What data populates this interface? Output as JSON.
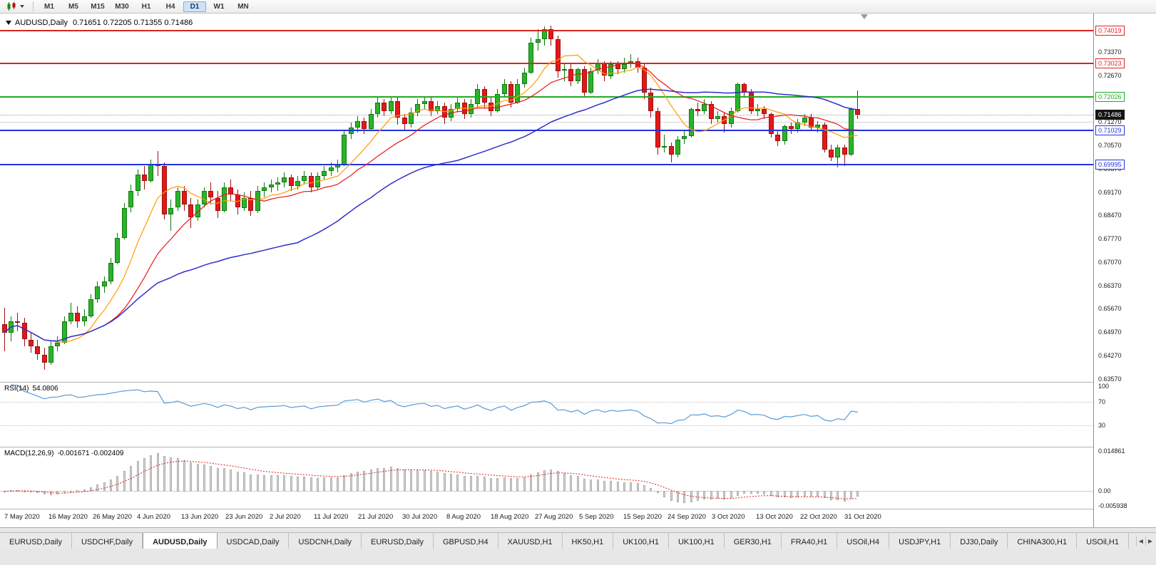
{
  "toolbar": {
    "timeframes": [
      "M1",
      "M5",
      "M15",
      "M30",
      "H1",
      "H4",
      "D1",
      "W1",
      "MN"
    ],
    "active_timeframe": "D1"
  },
  "chart": {
    "symbol_title": "AUDUSD,Daily",
    "ohlc_line": "0.71651 0.72205 0.71355 0.71486",
    "scale": {
      "price_max": 0.7452,
      "price_min": 0.635
    },
    "current": {
      "price": 0.71486,
      "label": "0.71486"
    },
    "grid_line_price": 0.7127,
    "y_axis_labels": [
      "0.74070",
      "0.73370",
      "0.72670",
      "0.71970",
      "0.71270",
      "0.70570",
      "0.69870",
      "0.69170",
      "0.68470",
      "0.67770",
      "0.67070",
      "0.66370",
      "0.65670",
      "0.64970",
      "0.64270",
      "0.63570"
    ],
    "levels": [
      {
        "price": 0.74019,
        "label": "0.74019",
        "color": "#dd2222"
      },
      {
        "price": 0.73023,
        "label": "0.73023",
        "color": "#dd2222"
      },
      {
        "price": 0.72026,
        "label": "0.72026",
        "color": "#22aa22"
      },
      {
        "price": 0.71029,
        "label": "0.71029",
        "color": "#2233dd"
      },
      {
        "price": 0.69995,
        "label": "0.69995",
        "color": "#2233dd"
      }
    ],
    "colors": {
      "up": "#2bb32b",
      "up_border": "#0e7a0e",
      "down": "#e51717",
      "down_border": "#9c0f0f"
    }
  },
  "chart_data": {
    "type": "candlestick",
    "title": "AUDUSD,Daily",
    "x_axis_labels": [
      "7 May 2020",
      "16 May 2020",
      "26 May 2020",
      "4 Jun 2020",
      "13 Jun 2020",
      "23 Jun 2020",
      "2 Jul 2020",
      "11 Jul 2020",
      "21 Jul 2020",
      "30 Jul 2020",
      "8 Aug 2020",
      "18 Aug 2020",
      "27 Aug 2020",
      "5 Sep 2020",
      "15 Sep 2020",
      "24 Sep 2020",
      "3 Oct 2020",
      "13 Oct 2020",
      "22 Oct 2020",
      "31 Oct 2020"
    ],
    "ohlc_last": {
      "open": 0.71651,
      "high": 0.72205,
      "low": 0.71355,
      "close": 0.71486
    },
    "candles": [
      [
        0.652,
        0.657,
        0.644,
        0.6495
      ],
      [
        0.6495,
        0.6545,
        0.647,
        0.653
      ],
      [
        0.653,
        0.6555,
        0.65,
        0.6525
      ],
      [
        0.6525,
        0.654,
        0.6455,
        0.6475
      ],
      [
        0.6475,
        0.6495,
        0.6435,
        0.6455
      ],
      [
        0.6455,
        0.6475,
        0.6415,
        0.643
      ],
      [
        0.643,
        0.645,
        0.6385,
        0.6405
      ],
      [
        0.6405,
        0.647,
        0.64,
        0.6455
      ],
      [
        0.6455,
        0.6485,
        0.644,
        0.6465
      ],
      [
        0.6465,
        0.6545,
        0.646,
        0.653
      ],
      [
        0.653,
        0.6585,
        0.652,
        0.6555
      ],
      [
        0.6555,
        0.6575,
        0.651,
        0.653
      ],
      [
        0.653,
        0.6565,
        0.6515,
        0.6545
      ],
      [
        0.6545,
        0.661,
        0.654,
        0.6595
      ],
      [
        0.6595,
        0.665,
        0.6585,
        0.6635
      ],
      [
        0.6635,
        0.6665,
        0.6615,
        0.665
      ],
      [
        0.665,
        0.672,
        0.664,
        0.6705
      ],
      [
        0.6705,
        0.6795,
        0.67,
        0.678
      ],
      [
        0.678,
        0.6885,
        0.6775,
        0.687
      ],
      [
        0.687,
        0.694,
        0.6855,
        0.692
      ],
      [
        0.692,
        0.6985,
        0.6905,
        0.697
      ],
      [
        0.697,
        0.6995,
        0.6925,
        0.695
      ],
      [
        0.695,
        0.7015,
        0.6945,
        0.7
      ],
      [
        0.7,
        0.704,
        0.6965,
        0.6995
      ],
      [
        0.6995,
        0.7005,
        0.6835,
        0.685
      ],
      [
        0.685,
        0.6895,
        0.68,
        0.687
      ],
      [
        0.687,
        0.693,
        0.686,
        0.692
      ],
      [
        0.692,
        0.6935,
        0.686,
        0.688
      ],
      [
        0.688,
        0.69,
        0.681,
        0.684
      ],
      [
        0.684,
        0.6895,
        0.683,
        0.688
      ],
      [
        0.688,
        0.693,
        0.687,
        0.692
      ],
      [
        0.692,
        0.6945,
        0.688,
        0.69
      ],
      [
        0.69,
        0.692,
        0.684,
        0.686
      ],
      [
        0.686,
        0.6945,
        0.6855,
        0.693
      ],
      [
        0.693,
        0.6955,
        0.689,
        0.691
      ],
      [
        0.691,
        0.6925,
        0.685,
        0.687
      ],
      [
        0.687,
        0.6915,
        0.686,
        0.69
      ],
      [
        0.69,
        0.692,
        0.6845,
        0.686
      ],
      [
        0.686,
        0.6935,
        0.6855,
        0.692
      ],
      [
        0.692,
        0.6945,
        0.69,
        0.693
      ],
      [
        0.693,
        0.6955,
        0.6915,
        0.694
      ],
      [
        0.694,
        0.696,
        0.692,
        0.6945
      ],
      [
        0.6945,
        0.6975,
        0.693,
        0.696
      ],
      [
        0.696,
        0.697,
        0.692,
        0.6935
      ],
      [
        0.6935,
        0.6965,
        0.6925,
        0.695
      ],
      [
        0.695,
        0.698,
        0.694,
        0.6965
      ],
      [
        0.6965,
        0.6975,
        0.6915,
        0.693
      ],
      [
        0.693,
        0.6975,
        0.6925,
        0.6965
      ],
      [
        0.6965,
        0.6995,
        0.6955,
        0.698
      ],
      [
        0.698,
        0.7005,
        0.6965,
        0.699
      ],
      [
        0.699,
        0.7015,
        0.6975,
        0.7
      ],
      [
        0.7,
        0.7105,
        0.6995,
        0.709
      ],
      [
        0.709,
        0.7125,
        0.7075,
        0.711
      ],
      [
        0.711,
        0.7145,
        0.7095,
        0.713
      ],
      [
        0.713,
        0.714,
        0.709,
        0.7105
      ],
      [
        0.7105,
        0.7165,
        0.71,
        0.715
      ],
      [
        0.715,
        0.72,
        0.714,
        0.7185
      ],
      [
        0.7185,
        0.7195,
        0.7145,
        0.716
      ],
      [
        0.716,
        0.7205,
        0.715,
        0.719
      ],
      [
        0.719,
        0.72,
        0.712,
        0.714
      ],
      [
        0.714,
        0.715,
        0.71,
        0.712
      ],
      [
        0.712,
        0.717,
        0.711,
        0.7155
      ],
      [
        0.7155,
        0.7195,
        0.7145,
        0.718
      ],
      [
        0.718,
        0.7205,
        0.7165,
        0.719
      ],
      [
        0.719,
        0.72,
        0.7145,
        0.716
      ],
      [
        0.716,
        0.719,
        0.715,
        0.7175
      ],
      [
        0.7175,
        0.7185,
        0.712,
        0.714
      ],
      [
        0.714,
        0.718,
        0.713,
        0.7165
      ],
      [
        0.7165,
        0.72,
        0.7155,
        0.7185
      ],
      [
        0.7185,
        0.7195,
        0.7135,
        0.715
      ],
      [
        0.715,
        0.7195,
        0.714,
        0.718
      ],
      [
        0.718,
        0.724,
        0.717,
        0.7225
      ],
      [
        0.7225,
        0.7235,
        0.717,
        0.7185
      ],
      [
        0.7185,
        0.72,
        0.7145,
        0.716
      ],
      [
        0.716,
        0.7225,
        0.7155,
        0.721
      ],
      [
        0.721,
        0.7255,
        0.72,
        0.724
      ],
      [
        0.724,
        0.725,
        0.717,
        0.7185
      ],
      [
        0.7185,
        0.7255,
        0.718,
        0.724
      ],
      [
        0.724,
        0.729,
        0.723,
        0.7275
      ],
      [
        0.7275,
        0.738,
        0.727,
        0.7365
      ],
      [
        0.7365,
        0.7405,
        0.734,
        0.7375
      ],
      [
        0.7375,
        0.7414,
        0.7355,
        0.7405
      ],
      [
        0.7405,
        0.7415,
        0.7355,
        0.7375
      ],
      [
        0.7375,
        0.7385,
        0.726,
        0.728
      ],
      [
        0.728,
        0.73,
        0.725,
        0.7285
      ],
      [
        0.7285,
        0.73,
        0.7235,
        0.725
      ],
      [
        0.725,
        0.729,
        0.724,
        0.7285
      ],
      [
        0.7285,
        0.7295,
        0.7205,
        0.7215
      ],
      [
        0.7215,
        0.729,
        0.721,
        0.728
      ],
      [
        0.728,
        0.7315,
        0.727,
        0.7305
      ],
      [
        0.7305,
        0.731,
        0.725,
        0.7265
      ],
      [
        0.7265,
        0.731,
        0.7255,
        0.73
      ],
      [
        0.73,
        0.731,
        0.727,
        0.7285
      ],
      [
        0.7285,
        0.732,
        0.7275,
        0.73
      ],
      [
        0.73,
        0.733,
        0.729,
        0.731
      ],
      [
        0.731,
        0.732,
        0.7275,
        0.729
      ],
      [
        0.729,
        0.73,
        0.7195,
        0.7215
      ],
      [
        0.7215,
        0.723,
        0.714,
        0.716
      ],
      [
        0.716,
        0.717,
        0.703,
        0.705
      ],
      [
        0.705,
        0.709,
        0.7035,
        0.7055
      ],
      [
        0.7055,
        0.7065,
        0.7005,
        0.703
      ],
      [
        0.703,
        0.7085,
        0.702,
        0.7075
      ],
      [
        0.7075,
        0.71,
        0.706,
        0.7085
      ],
      [
        0.7085,
        0.717,
        0.708,
        0.7165
      ],
      [
        0.7165,
        0.7185,
        0.7145,
        0.716
      ],
      [
        0.716,
        0.7195,
        0.715,
        0.718
      ],
      [
        0.718,
        0.719,
        0.712,
        0.7135
      ],
      [
        0.7135,
        0.716,
        0.7125,
        0.7145
      ],
      [
        0.7145,
        0.7155,
        0.7095,
        0.712
      ],
      [
        0.712,
        0.717,
        0.711,
        0.716
      ],
      [
        0.716,
        0.7245,
        0.7155,
        0.724
      ],
      [
        0.724,
        0.7245,
        0.72,
        0.7215
      ],
      [
        0.7215,
        0.7225,
        0.715,
        0.716
      ],
      [
        0.716,
        0.718,
        0.7145,
        0.7165
      ],
      [
        0.7165,
        0.7175,
        0.7135,
        0.715
      ],
      [
        0.715,
        0.7155,
        0.708,
        0.709
      ],
      [
        0.709,
        0.7105,
        0.7055,
        0.707
      ],
      [
        0.707,
        0.712,
        0.706,
        0.7115
      ],
      [
        0.7115,
        0.7125,
        0.709,
        0.7105
      ],
      [
        0.7105,
        0.7135,
        0.7095,
        0.7125
      ],
      [
        0.7125,
        0.715,
        0.7115,
        0.714
      ],
      [
        0.714,
        0.715,
        0.71,
        0.711
      ],
      [
        0.711,
        0.713,
        0.7095,
        0.712
      ],
      [
        0.712,
        0.7125,
        0.7035,
        0.7045
      ],
      [
        0.7045,
        0.706,
        0.701,
        0.702
      ],
      [
        0.702,
        0.706,
        0.699,
        0.705
      ],
      [
        0.705,
        0.706,
        0.6995,
        0.703
      ],
      [
        0.703,
        0.717,
        0.7025,
        0.7165
      ],
      [
        0.7165,
        0.7221,
        0.7136,
        0.7149
      ]
    ],
    "overlays": [
      {
        "name": "ma-fast",
        "type": "sma",
        "period": 8,
        "color": "#ff9c00"
      },
      {
        "name": "ma-mid",
        "type": "sma",
        "period": 16,
        "color": "#e81717"
      },
      {
        "name": "ma-slow",
        "type": "sma",
        "period": 45,
        "color": "#2f2fcc"
      }
    ]
  },
  "rsi_panel": {
    "title": "RSI(14)",
    "value": "54.0806",
    "period": 14,
    "axis_labels": [
      {
        "v": 100,
        "label": "100"
      },
      {
        "v": 70,
        "label": "70"
      },
      {
        "v": 30,
        "label": "30"
      }
    ],
    "guide_levels": [
      70,
      30
    ],
    "line_color": "#5b9bd5",
    "range": [
      0,
      100
    ]
  },
  "macd_panel": {
    "title": "MACD(12,26,9)",
    "values": "-0.001671 -0.002409",
    "fast": 12,
    "slow": 26,
    "signal": 9,
    "axis_labels": [
      {
        "v": 0.014861,
        "label": "0.014861"
      },
      {
        "v": 0,
        "label": "0.00"
      },
      {
        "v": -0.005938,
        "label": "-0.005938"
      }
    ],
    "scale": {
      "max": 0.014861,
      "min": -0.005938
    },
    "hist_color": "#d6d6d6",
    "hist_border": "#aeaeae",
    "signal_color": "#e02020"
  },
  "tabs": [
    {
      "label": "EURUSD,Daily",
      "active": false
    },
    {
      "label": "USDCHF,Daily",
      "active": false
    },
    {
      "label": "AUDUSD,Daily",
      "active": true
    },
    {
      "label": "USDCAD,Daily",
      "active": false
    },
    {
      "label": "USDCNH,Daily",
      "active": false
    },
    {
      "label": "EURUSD,Daily",
      "active": false
    },
    {
      "label": "GBPUSD,H4",
      "active": false
    },
    {
      "label": "XAUUSD,H1",
      "active": false
    },
    {
      "label": "HK50,H1",
      "active": false
    },
    {
      "label": "UK100,H1",
      "active": false
    },
    {
      "label": "UK100,H1",
      "active": false
    },
    {
      "label": "GER30,H1",
      "active": false
    },
    {
      "label": "FRA40,H1",
      "active": false
    },
    {
      "label": "USOil,H4",
      "active": false
    },
    {
      "label": "USDJPY,H1",
      "active": false
    },
    {
      "label": "DJ30,Daily",
      "active": false
    },
    {
      "label": "CHINA300,H1",
      "active": false
    },
    {
      "label": "USOil,H1",
      "active": false
    }
  ]
}
